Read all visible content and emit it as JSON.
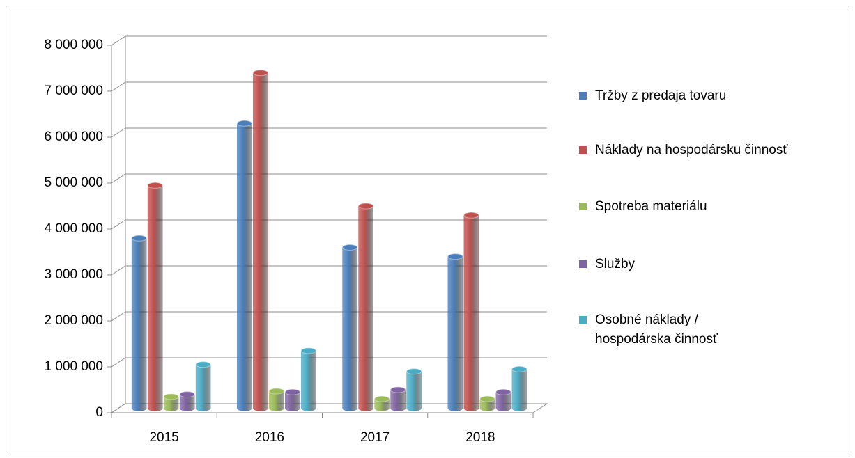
{
  "chart_data": {
    "type": "bar",
    "categories": [
      "2015",
      "2016",
      "2017",
      "2018"
    ],
    "series": [
      {
        "name": "Tržby z predaja tovaru",
        "color": "#4a7ebb",
        "values": [
          3700000,
          6200000,
          3500000,
          3300000
        ]
      },
      {
        "name": "Náklady na hospodársku činnosť",
        "color": "#c0504d",
        "values": [
          4850000,
          7300000,
          4400000,
          4200000
        ]
      },
      {
        "name": "Spotreba materiálu",
        "color": "#9bbb59",
        "values": [
          250000,
          370000,
          200000,
          200000
        ]
      },
      {
        "name": "Služby",
        "color": "#8064a2",
        "values": [
          300000,
          350000,
          400000,
          350000
        ]
      },
      {
        "name": "Osobné náklady / hospodárska činnosť",
        "color": "#4bacc6",
        "values": [
          950000,
          1250000,
          800000,
          850000
        ]
      }
    ],
    "ylim": [
      0,
      8000000
    ],
    "yticks": [
      0,
      {
        "value": 1000000,
        "label": "1 000 000"
      },
      {
        "value": 2000000,
        "label": "2 000 000"
      },
      {
        "value": 3000000,
        "label": "3 000 000"
      },
      {
        "value": 4000000,
        "label": "4 000 000"
      },
      {
        "value": 5000000,
        "label": "5 000 000"
      },
      {
        "value": 6000000,
        "label": "6 000 000"
      },
      {
        "value": 7000000,
        "label": "7 000 000"
      },
      {
        "value": 8000000,
        "label": "8 000 000"
      }
    ],
    "grid": true,
    "legend": "right"
  }
}
